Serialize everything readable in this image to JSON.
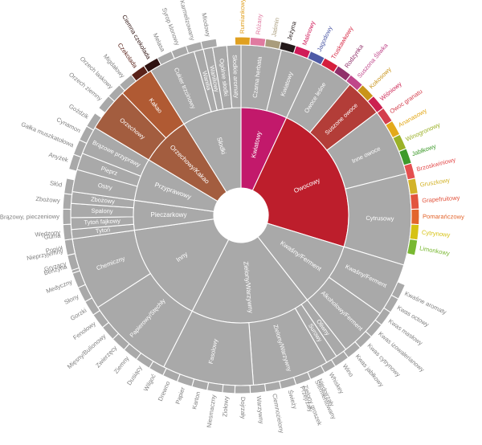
{
  "chart_data": {
    "type": "sunburst",
    "title": "",
    "gray": "#a9a9a9",
    "root_segments": [
      {
        "label": "Kwiatowy",
        "color": "#c2196b",
        "level2": [
          {
            "label": "Czarna herbata"
          },
          {
            "label": "Kwiatowy"
          }
        ],
        "level3": [
          "Rumiankowy",
          "Różany",
          "Jaśmin"
        ]
      },
      {
        "label": "Owocowy",
        "color": "#bd1e2c",
        "level2": [
          {
            "label": "Owoce leśne"
          },
          {
            "label": "Suszone owoce",
            "color": "#b33d38"
          },
          {
            "label": "Inne owoce"
          },
          {
            "label": "Cytrusowy"
          }
        ],
        "level3": [
          "Jeżyna",
          "Malinowy",
          "Jagodowy",
          "Truskawkowy",
          "Rodzynka",
          "Suszona Śliwka",
          "Kokosowy",
          "Wiśniowy",
          "Owoc granatu",
          "Ananasowy",
          "Winogronowy",
          "Jabłkowy",
          "Brzoskwiniowy",
          "Gruszkowy",
          "Grapefruitowy",
          "Pomarańczowy",
          "Cytrynowy",
          "Limonkowy"
        ]
      },
      {
        "label": "Kwaśny/Ferment",
        "color": null,
        "level2": [
          {
            "label": "Kwaśny/Ferment"
          },
          {
            "label": "Alkoholowy/Ferment"
          }
        ],
        "level3": [
          "Kwaśne aromaty",
          "Kwas octowy",
          "Kwas masłowy",
          "Kwas izowalerianowy",
          "Kwas cytrynowy",
          "Kwas jabłkowy",
          "Wino",
          "Whiskey",
          "Sfermentowany",
          "Przejrzały"
        ]
      },
      {
        "label": "Zielony/Warzywny",
        "color": null,
        "level2": [
          {
            "label": "Oliwny"
          },
          {
            "label": "Surowy"
          },
          {
            "label": "Zielony/Warzywny"
          },
          {
            "label": "Fasolowy"
          }
        ],
        "level3": [
          "Niedojrzały",
          "Zielony groszek",
          "Świeży",
          "Ciemnozielony",
          "Warzywny",
          "Dojrzały",
          "Ziołowy"
        ]
      },
      {
        "label": "Inny",
        "color": null,
        "level2": [
          {
            "label": "Papierowy/Stęchły"
          },
          {
            "label": "Chemiczny"
          }
        ],
        "level3": [
          "Niesmaczny",
          "Karton",
          "Papier",
          "Drewno",
          "Wilgoć",
          "Dusiący",
          "Ziemny",
          "Zwierzęcy",
          "Mięsny/Bulionowy",
          "Fenolowy",
          "Gorzki",
          "Słony",
          "Medyczny",
          "Benzyna",
          "Nieprzyjemny",
          "Guma"
        ]
      },
      {
        "label": "Pieczarkowy",
        "color": null,
        "level2": [
          {
            "label": "Tytoń"
          },
          {
            "label": "Tytoń fajkowy"
          },
          {
            "label": "Spalony"
          },
          {
            "label": "Zbożowy"
          }
        ],
        "level3": [
          "Gryzący",
          "Popiół",
          "Wędzony",
          "Brązowy, pieczeniowy",
          "Zbożowy",
          "Słód"
        ]
      },
      {
        "label": "Przyprawowy",
        "color": null,
        "level2": [
          {
            "label": "Ostry"
          },
          {
            "label": "Pieprz"
          },
          {
            "label": "Brązowe przyprawy"
          }
        ],
        "level3": [
          "Anyżek",
          "Gałka muszkatołowa",
          "Cynamon",
          "Goździk"
        ]
      },
      {
        "label": "Orzechowy/Kakao",
        "color": "#a35d3f",
        "level2": [
          {
            "label": "Orzechowy"
          },
          {
            "label": "Kakao",
            "color": "#b05a33"
          }
        ],
        "level3": [
          "Orzech ziemny",
          "Orzech laskowy",
          "Migdałowy",
          "Czekolada",
          "Ciemna czekolada"
        ]
      },
      {
        "label": "Słodki",
        "color": null,
        "level2": [
          {
            "label": "Cukier trzcinowy"
          },
          {
            "label": "Wanilia"
          },
          {
            "label": "Waniliowy"
          },
          {
            "label": "Ogólnie słodki"
          },
          {
            "label": "Słodkie aromaty"
          }
        ],
        "level3": [
          "Melasa",
          "Syrop klonowy",
          "Karmelizowany",
          "Miodowy"
        ]
      }
    ]
  }
}
